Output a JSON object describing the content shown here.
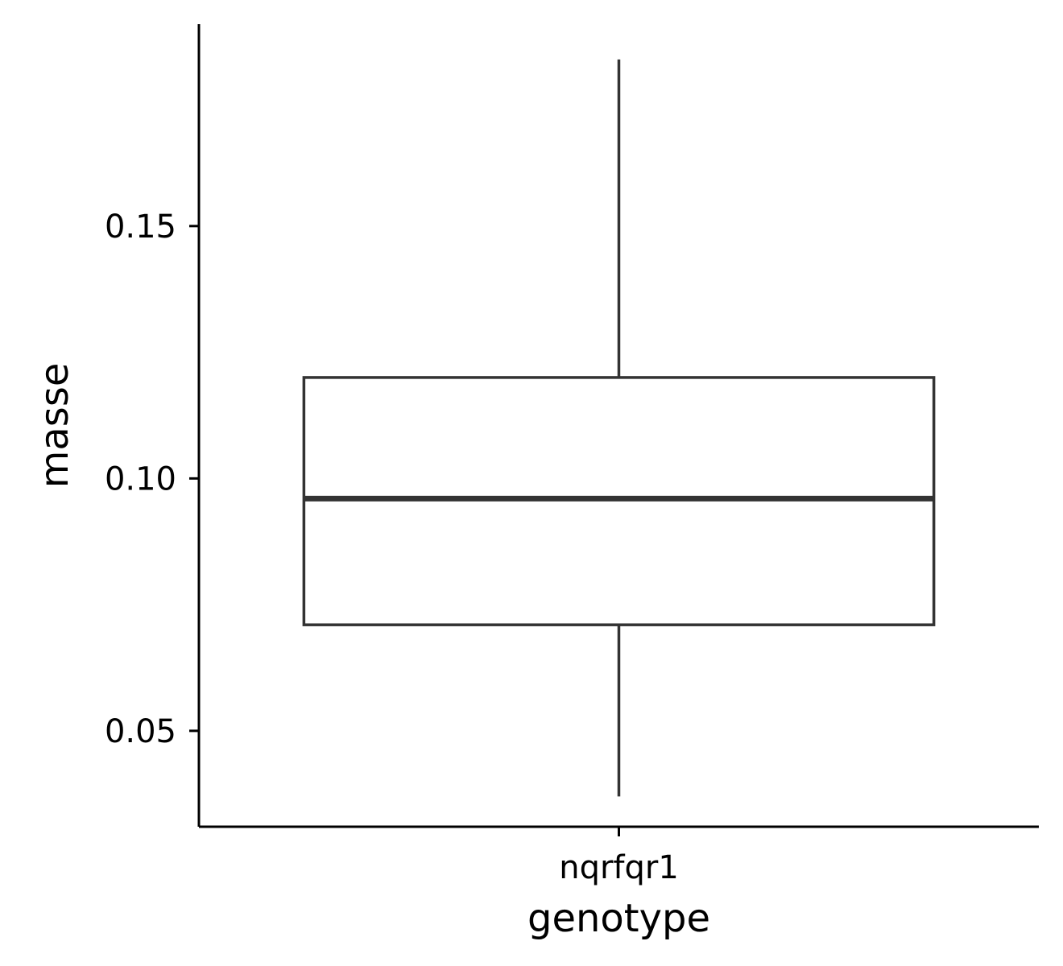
{
  "chart_data": {
    "type": "boxplot",
    "xlabel": "genotype",
    "ylabel": "masse",
    "ylim": [
      0.031,
      0.19
    ],
    "yticks": [
      "0.05",
      "0.10",
      "0.15"
    ],
    "ytick_values": [
      0.05,
      0.1,
      0.15
    ],
    "categories": [
      "nqrfqr1"
    ],
    "boxes": [
      {
        "category": "nqrfqr1",
        "min": 0.037,
        "q1": 0.071,
        "median": 0.096,
        "q3": 0.12,
        "max": 0.183
      }
    ],
    "grid": false,
    "legend": "none",
    "colors": {
      "box_stroke": "#333333",
      "box_fill": "#ffffff",
      "axis": "#000000"
    }
  }
}
